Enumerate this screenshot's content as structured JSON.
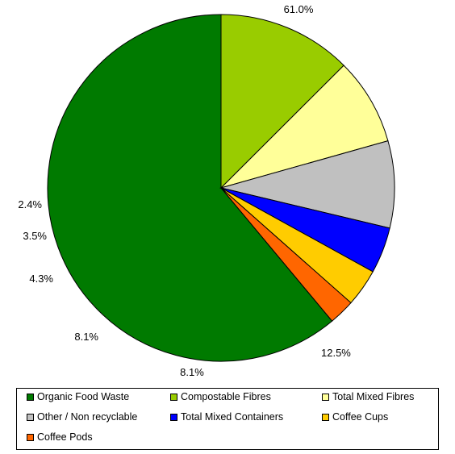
{
  "chart_data": {
    "type": "pie",
    "title": "",
    "categories": [
      "Organic Food Waste",
      "Compostable Fibres",
      "Total Mixed Fibres",
      "Other / Non recyclable",
      "Total Mixed Containers",
      "Coffee Cups",
      "Coffee Pods"
    ],
    "values": [
      61.0,
      12.5,
      8.1,
      8.1,
      4.3,
      3.5,
      2.4
    ],
    "labels": [
      "61.0%",
      "12.5%",
      "8.1%",
      "8.1%",
      "4.3%",
      "3.5%",
      "2.4%"
    ],
    "colors": [
      "#007A00",
      "#99CC00",
      "#FFFF99",
      "#C0C0C0",
      "#0000FF",
      "#FFCC00",
      "#FF6600"
    ],
    "legend_position": "bottom"
  }
}
